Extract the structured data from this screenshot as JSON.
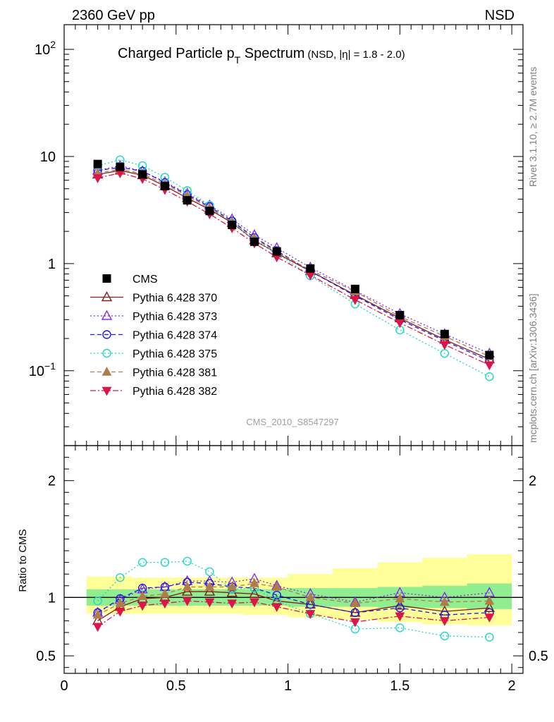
{
  "header": {
    "left": "2360 GeV pp",
    "right": "NSD"
  },
  "side_labels": {
    "rivet": "Rivet 3.1.10, ≥ 2.7M events",
    "mcplots": "mcplots.cern.ch [arXiv:1306.3436]"
  },
  "main_title": {
    "main_pre": "Charged Particle p",
    "main_sub": "T",
    "main_post": " Spectrum",
    "small": "(NSD, |η| = 1.8 - 2.0)"
  },
  "watermark": "CMS_2010_S8547297",
  "colors": {
    "CMS": "#000000",
    "Pythia 6.428 370": "#8b1a1a",
    "Pythia 6.428 373": "#8a2be2",
    "Pythia 6.428 374": "#1c1ce6",
    "Pythia 6.428 375": "#20d6c8",
    "Pythia 6.428 381": "#b07c4a",
    "Pythia 6.428 382": "#dc1448",
    "band_inner": "#90ee90",
    "band_outer": "#ffff99"
  },
  "chart_data": [
    {
      "type": "scatter",
      "title": "Charged Particle pT Spectrum (NSD, |η| = 1.8 - 2.0)",
      "xlabel": "",
      "ylabel": "",
      "yscale": "log",
      "xlim": [
        0,
        2.05
      ],
      "ylim": [
        0.02,
        170
      ],
      "yticks": [
        {
          "v": 0.1,
          "base": "10",
          "exp": "−1"
        },
        {
          "v": 1,
          "base": "1",
          "exp": ""
        },
        {
          "v": 10,
          "base": "10",
          "exp": ""
        },
        {
          "v": 100,
          "base": "10",
          "exp": "2"
        }
      ],
      "legend_position": "middle-left",
      "x": [
        0.15,
        0.25,
        0.35,
        0.45,
        0.55,
        0.65,
        0.75,
        0.85,
        0.95,
        1.1,
        1.3,
        1.5,
        1.7,
        1.9
      ],
      "series": [
        {
          "name": "CMS",
          "marker": "square-filled",
          "line": "none",
          "values": [
            8.5,
            8.0,
            6.8,
            5.3,
            3.9,
            3.1,
            2.3,
            1.6,
            1.3,
            0.9,
            0.58,
            0.33,
            0.22,
            0.14
          ]
        },
        {
          "name": "Pythia 6.428 370",
          "marker": "triangle-up-open",
          "line": "solid",
          "values": [
            6.8,
            7.4,
            6.7,
            5.3,
            4.1,
            3.2,
            2.4,
            1.65,
            1.25,
            0.85,
            0.51,
            0.31,
            0.195,
            0.128
          ]
        },
        {
          "name": "Pythia 6.428 373",
          "marker": "triangle-up-open",
          "line": "dotted",
          "values": [
            7.4,
            8.2,
            7.3,
            5.8,
            4.5,
            3.5,
            2.6,
            1.85,
            1.4,
            0.92,
            0.56,
            0.34,
            0.22,
            0.145
          ]
        },
        {
          "name": "Pythia 6.428 374",
          "marker": "circle-open",
          "line": "dashed",
          "values": [
            7.4,
            7.9,
            7.3,
            5.7,
            4.4,
            3.4,
            2.5,
            1.75,
            1.32,
            0.85,
            0.5,
            0.3,
            0.19,
            0.123
          ]
        },
        {
          "name": "Pythia 6.428 375",
          "marker": "circle-open",
          "line": "dotted",
          "values": [
            8.2,
            9.3,
            8.2,
            6.4,
            4.8,
            3.5,
            2.4,
            1.65,
            1.25,
            0.77,
            0.42,
            0.24,
            0.145,
            0.088
          ]
        },
        {
          "name": "Pythia 6.428 381",
          "marker": "triangle-up-filled",
          "line": "dashed",
          "values": [
            7.0,
            7.6,
            6.9,
            5.5,
            4.3,
            3.3,
            2.45,
            1.72,
            1.28,
            0.87,
            0.55,
            0.32,
            0.21,
            0.136
          ]
        },
        {
          "name": "Pythia 6.428 382",
          "marker": "triangle-down-filled",
          "line": "dashdot",
          "values": [
            6.3,
            7.0,
            6.2,
            4.9,
            3.8,
            2.9,
            2.15,
            1.55,
            1.15,
            0.78,
            0.46,
            0.28,
            0.175,
            0.113
          ]
        }
      ]
    },
    {
      "type": "scatter",
      "title": "",
      "xlabel": "",
      "ylabel": "Ratio to CMS",
      "xlim": [
        0,
        2.05
      ],
      "ylim": [
        0.35,
        2.3
      ],
      "yticks": [
        0.5,
        1,
        2
      ],
      "xticks": [
        0,
        0.5,
        1,
        1.5,
        2
      ],
      "x": [
        0.15,
        0.25,
        0.35,
        0.45,
        0.55,
        0.65,
        0.75,
        0.85,
        0.95,
        1.1,
        1.3,
        1.5,
        1.7,
        1.9
      ],
      "bands": {
        "edges": [
          0.1,
          0.2,
          0.3,
          0.4,
          0.5,
          0.6,
          0.7,
          0.8,
          0.9,
          1.0,
          1.2,
          1.4,
          1.6,
          1.8,
          2.0
        ],
        "inner": [
          [
            0.93,
            1.07
          ],
          [
            0.93,
            1.07
          ],
          [
            0.93,
            1.07
          ],
          [
            0.93,
            1.07
          ],
          [
            0.93,
            1.07
          ],
          [
            0.93,
            1.07
          ],
          [
            0.93,
            1.07
          ],
          [
            0.93,
            1.07
          ],
          [
            0.93,
            1.07
          ],
          [
            0.92,
            1.08
          ],
          [
            0.92,
            1.08
          ],
          [
            0.91,
            1.09
          ],
          [
            0.91,
            1.1
          ],
          [
            0.9,
            1.12
          ]
        ],
        "outer": [
          [
            0.86,
            1.18
          ],
          [
            0.86,
            1.18
          ],
          [
            0.86,
            1.17
          ],
          [
            0.86,
            1.17
          ],
          [
            0.86,
            1.17
          ],
          [
            0.86,
            1.17
          ],
          [
            0.86,
            1.17
          ],
          [
            0.85,
            1.17
          ],
          [
            0.85,
            1.17
          ],
          [
            0.83,
            1.2
          ],
          [
            0.81,
            1.25
          ],
          [
            0.79,
            1.3
          ],
          [
            0.77,
            1.34
          ],
          [
            0.76,
            1.37
          ]
        ]
      },
      "series": [
        {
          "name": "Pythia 6.428 370",
          "values": [
            0.8,
            0.92,
            0.99,
            1.0,
            1.05,
            1.05,
            1.04,
            1.03,
            0.97,
            0.94,
            0.87,
            0.93,
            0.88,
            0.91
          ]
        },
        {
          "name": "Pythia 6.428 373",
          "values": [
            0.87,
            0.98,
            1.07,
            1.09,
            1.14,
            1.14,
            1.13,
            1.16,
            1.1,
            1.03,
            0.96,
            1.04,
            1.0,
            1.04
          ]
        },
        {
          "name": "Pythia 6.428 374",
          "values": [
            0.87,
            0.99,
            1.08,
            1.09,
            1.13,
            1.12,
            1.09,
            1.08,
            1.02,
            0.94,
            0.87,
            0.91,
            0.85,
            0.87
          ]
        },
        {
          "name": "Pythia 6.428 375",
          "values": [
            0.97,
            1.17,
            1.3,
            1.3,
            1.31,
            1.22,
            1.07,
            1.08,
            0.97,
            0.86,
            0.73,
            0.74,
            0.67,
            0.66
          ]
        },
        {
          "name": "Pythia 6.428 381",
          "values": [
            0.85,
            0.95,
            1.01,
            1.03,
            1.09,
            1.09,
            1.09,
            1.12,
            1.09,
            1.0,
            0.95,
            0.99,
            0.96,
            0.97
          ]
        },
        {
          "name": "Pythia 6.428 382",
          "values": [
            0.75,
            0.88,
            0.93,
            0.95,
            0.97,
            0.96,
            0.95,
            0.96,
            0.92,
            0.86,
            0.79,
            0.84,
            0.8,
            0.83
          ]
        }
      ]
    }
  ]
}
